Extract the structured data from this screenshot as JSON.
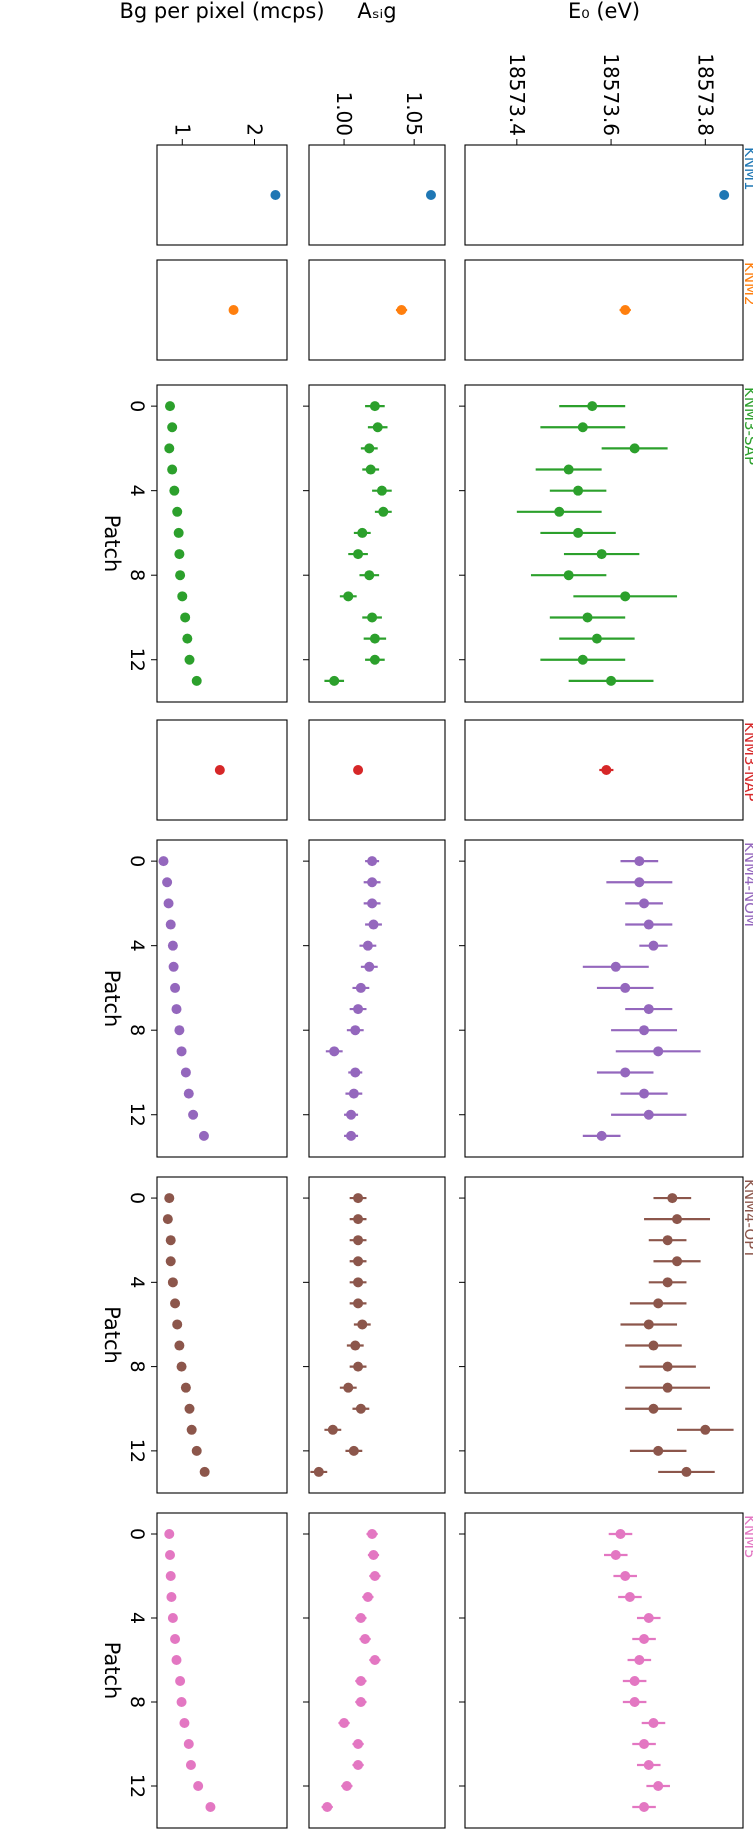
{
  "figure": {
    "orientation": "rotated-90-clockwise"
  },
  "chart_data": {
    "type": "scatter",
    "title": "",
    "xlabel": "Patch",
    "xticks": [
      0,
      4,
      8,
      12
    ],
    "rows": [
      {
        "id": "e0",
        "ylabel": "E₀ (eV)",
        "yticks": [
          18573.8,
          18573.6,
          18573.4
        ],
        "ylim": [
          18573.29,
          18573.88
        ]
      },
      {
        "id": "asig",
        "ylabel": "Aₛᵢg",
        "yticks": [
          1.05,
          1.0
        ],
        "ylim": [
          0.975,
          1.072
        ]
      },
      {
        "id": "bg",
        "ylabel": "Bg per pixel (mcps)",
        "yticks": [
          2,
          1
        ],
        "ylim": [
          0.65,
          2.45
        ]
      }
    ],
    "campaigns": [
      {
        "name": "KNM1",
        "color": "#1f77b4",
        "patch_based": false,
        "e0": {
          "values": [
            18573.84
          ],
          "errors": [
            0.008
          ]
        },
        "asig": {
          "values": [
            1.062
          ],
          "errors": [
            0.002
          ]
        },
        "bg": {
          "values": [
            2.29
          ]
        }
      },
      {
        "name": "KNM2",
        "color": "#ff7f0e",
        "patch_based": false,
        "e0": {
          "values": [
            18573.63
          ],
          "errors": [
            0.012
          ]
        },
        "asig": {
          "values": [
            1.041
          ],
          "errors": [
            0.004
          ]
        },
        "bg": {
          "values": [
            1.71
          ]
        }
      },
      {
        "name": "KNM3-SAP",
        "color": "#2ca02c",
        "patch_based": true,
        "x": [
          0,
          1,
          2,
          3,
          4,
          5,
          6,
          7,
          8,
          9,
          10,
          11,
          12,
          13
        ],
        "e0": {
          "values": [
            18573.56,
            18573.54,
            18573.65,
            18573.51,
            18573.53,
            18573.49,
            18573.53,
            18573.58,
            18573.51,
            18573.63,
            18573.55,
            18573.57,
            18573.54,
            18573.6
          ],
          "errors": [
            0.07,
            0.09,
            0.07,
            0.07,
            0.06,
            0.09,
            0.08,
            0.08,
            0.08,
            0.11,
            0.08,
            0.08,
            0.09,
            0.09
          ]
        },
        "asig": {
          "values": [
            1.022,
            1.024,
            1.018,
            1.019,
            1.027,
            1.028,
            1.013,
            1.01,
            1.018,
            1.003,
            1.02,
            1.022,
            1.022,
            0.993
          ],
          "errors": [
            0.007,
            0.007,
            0.006,
            0.006,
            0.007,
            0.006,
            0.006,
            0.007,
            0.007,
            0.006,
            0.007,
            0.008,
            0.007,
            0.007
          ]
        },
        "bg": {
          "values": [
            0.83,
            0.86,
            0.82,
            0.86,
            0.89,
            0.93,
            0.95,
            0.96,
            0.97,
            1.0,
            1.04,
            1.07,
            1.1,
            1.2
          ]
        }
      },
      {
        "name": "KNM3-NAP",
        "color": "#d62728",
        "patch_based": false,
        "e0": {
          "values": [
            18573.59
          ],
          "errors": [
            0.015
          ]
        },
        "asig": {
          "values": [
            1.01
          ],
          "errors": [
            0.003
          ]
        },
        "bg": {
          "values": [
            1.52
          ]
        }
      },
      {
        "name": "KNM4-NOM",
        "color": "#9467bd",
        "patch_based": true,
        "x": [
          0,
          1,
          2,
          3,
          4,
          5,
          6,
          7,
          8,
          9,
          10,
          11,
          12,
          13
        ],
        "e0": {
          "values": [
            18573.66,
            18573.66,
            18573.67,
            18573.68,
            18573.69,
            18573.61,
            18573.63,
            18573.68,
            18573.67,
            18573.7,
            18573.63,
            18573.67,
            18573.68,
            18573.58
          ],
          "errors": [
            0.04,
            0.07,
            0.04,
            0.05,
            0.03,
            0.07,
            0.06,
            0.05,
            0.07,
            0.09,
            0.06,
            0.05,
            0.08,
            0.04
          ]
        },
        "asig": {
          "values": [
            1.02,
            1.02,
            1.02,
            1.021,
            1.017,
            1.018,
            1.012,
            1.01,
            1.008,
            0.993,
            1.008,
            1.007,
            1.005,
            1.005
          ],
          "errors": [
            0.005,
            0.006,
            0.006,
            0.006,
            0.006,
            0.006,
            0.006,
            0.006,
            0.006,
            0.006,
            0.005,
            0.006,
            0.005,
            0.005
          ]
        },
        "bg": {
          "values": [
            0.74,
            0.79,
            0.81,
            0.84,
            0.87,
            0.88,
            0.9,
            0.92,
            0.96,
            0.99,
            1.05,
            1.09,
            1.15,
            1.3
          ]
        }
      },
      {
        "name": "KNM4-OPT",
        "color": "#8c564b",
        "patch_based": true,
        "x": [
          0,
          1,
          2,
          3,
          4,
          5,
          6,
          7,
          8,
          9,
          10,
          11,
          12,
          13
        ],
        "e0": {
          "values": [
            18573.73,
            18573.74,
            18573.72,
            18573.74,
            18573.72,
            18573.7,
            18573.68,
            18573.69,
            18573.72,
            18573.72,
            18573.69,
            18573.8,
            18573.7,
            18573.76
          ],
          "errors": [
            0.04,
            0.07,
            0.04,
            0.05,
            0.04,
            0.06,
            0.06,
            0.06,
            0.06,
            0.09,
            0.06,
            0.06,
            0.06,
            0.06
          ]
        },
        "asig": {
          "values": [
            1.01,
            1.01,
            1.01,
            1.01,
            1.01,
            1.01,
            1.013,
            1.008,
            1.01,
            1.003,
            1.012,
            0.992,
            1.007,
            0.982
          ],
          "errors": [
            0.006,
            0.006,
            0.006,
            0.006,
            0.006,
            0.006,
            0.006,
            0.006,
            0.006,
            0.006,
            0.006,
            0.006,
            0.006,
            0.006
          ]
        },
        "bg": {
          "values": [
            0.82,
            0.8,
            0.84,
            0.84,
            0.87,
            0.9,
            0.93,
            0.96,
            0.99,
            1.05,
            1.1,
            1.13,
            1.2,
            1.31
          ]
        }
      },
      {
        "name": "KNM5",
        "color": "#e377c2",
        "patch_based": true,
        "x": [
          0,
          1,
          2,
          3,
          4,
          5,
          6,
          7,
          8,
          9,
          10,
          11,
          12,
          13
        ],
        "e0": {
          "values": [
            18573.62,
            18573.61,
            18573.63,
            18573.64,
            18573.68,
            18573.67,
            18573.66,
            18573.65,
            18573.65,
            18573.69,
            18573.67,
            18573.68,
            18573.7,
            18573.67
          ],
          "errors": [
            0.025,
            0.025,
            0.025,
            0.025,
            0.025,
            0.025,
            0.025,
            0.025,
            0.025,
            0.025,
            0.025,
            0.025,
            0.025,
            0.025
          ]
        },
        "asig": {
          "values": [
            1.02,
            1.021,
            1.022,
            1.017,
            1.012,
            1.015,
            1.022,
            1.012,
            1.012,
            1.0,
            1.01,
            1.01,
            1.002,
            0.988
          ],
          "errors": [
            0.004,
            0.004,
            0.004,
            0.004,
            0.004,
            0.004,
            0.004,
            0.004,
            0.004,
            0.004,
            0.004,
            0.004,
            0.004,
            0.004
          ]
        },
        "bg": {
          "values": [
            0.82,
            0.83,
            0.84,
            0.85,
            0.87,
            0.9,
            0.92,
            0.97,
            0.99,
            1.03,
            1.09,
            1.12,
            1.22,
            1.39
          ]
        }
      }
    ]
  }
}
